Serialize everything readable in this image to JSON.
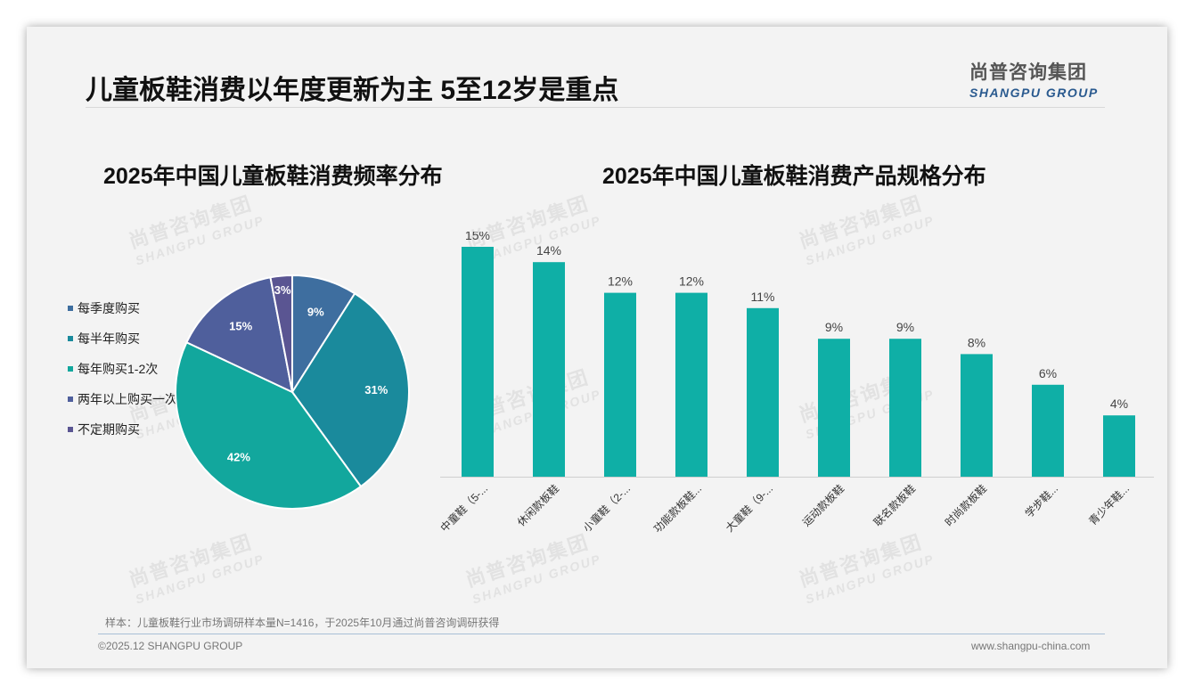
{
  "header": {
    "title": "儿童板鞋消费以年度更新为主 5至12岁是重点",
    "brand_cn": "尚普咨询集团",
    "brand_en": "SHANGPU GROUP"
  },
  "watermark": {
    "cn": "尚普咨询集团",
    "en": "SHANGPU GROUP"
  },
  "chart_data": [
    {
      "type": "pie",
      "title": "2025年中国儿童板鞋消费频率分布",
      "start": "top, clockwise",
      "legend_position": "left",
      "slices": [
        {
          "label": "每季度购买",
          "value": 9,
          "display": "9%",
          "color": "#3e6e9f"
        },
        {
          "label": "每半年购买",
          "value": 31,
          "display": "31%",
          "color": "#1a8a9c"
        },
        {
          "label": "每年购买1-2次",
          "value": 42,
          "display": "42%",
          "color": "#12a79d"
        },
        {
          "label": "两年以上购买一次",
          "value": 15,
          "display": "15%",
          "color": "#4f5f9c"
        },
        {
          "label": "不定期购买",
          "value": 3,
          "display": "3%",
          "color": "#5a5592"
        }
      ]
    },
    {
      "type": "bar",
      "title": "2025年中国儿童板鞋消费产品规格分布",
      "categories": [
        "中童鞋（5-...",
        "休闲款板鞋",
        "小童鞋（2-...",
        "功能款板鞋...",
        "大童鞋（9-...",
        "运动款板鞋",
        "联名款板鞋",
        "时尚款板鞋",
        "学步鞋...",
        "青少年鞋..."
      ],
      "values": [
        15,
        14,
        12,
        12,
        11,
        9,
        9,
        8,
        6,
        4
      ],
      "value_labels": [
        "15%",
        "14%",
        "12%",
        "12%",
        "11%",
        "9%",
        "9%",
        "8%",
        "6%",
        "4%"
      ],
      "ylim": [
        0,
        15
      ],
      "bar_color": "#0fafa6",
      "grid": false
    }
  ],
  "footer": {
    "note": "样本：儿童板鞋行业市场调研样本量N=1416，于2025年10月通过尚普咨询调研获得",
    "copyright": "©2025.12 SHANGPU GROUP",
    "website": "www.shangpu-china.com"
  }
}
